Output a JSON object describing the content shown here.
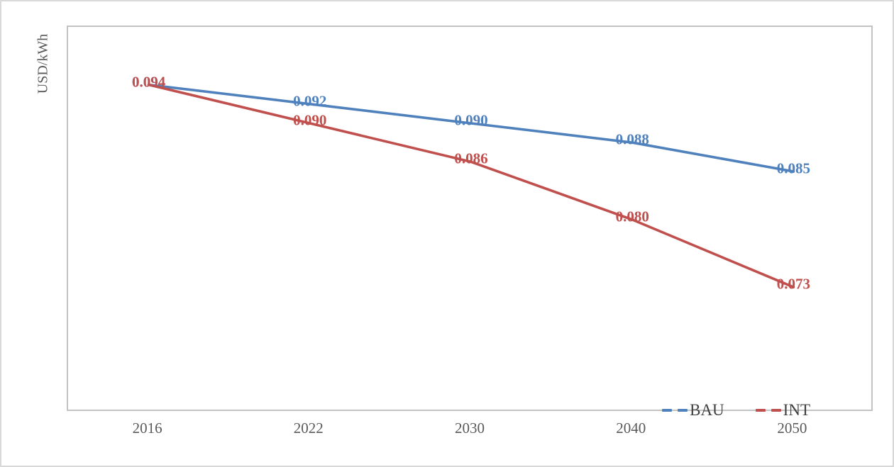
{
  "chart_data": {
    "type": "line",
    "title": "",
    "xlabel": "",
    "ylabel": "USD/kWh",
    "categories": [
      "2016",
      "2022",
      "2030",
      "2040",
      "2050"
    ],
    "series": [
      {
        "name": "BAU",
        "color": "#4F81BD",
        "values": [
          0.094,
          0.092,
          0.09,
          0.088,
          0.085
        ]
      },
      {
        "name": "INT",
        "color": "#C0504D",
        "values": [
          0.094,
          0.09,
          0.086,
          0.08,
          0.073
        ]
      }
    ],
    "ylim": [
      0.06,
      0.1
    ],
    "grid": false,
    "line_style": "solid",
    "data_labels": "shown, 3 decimals, colored per series, centered on points",
    "legend_position": "inside bottom-right",
    "legend_marker": "two dashes",
    "colors": {
      "axis_text": "#595959",
      "legend_text": "#404040",
      "plot_border": "#C3C3C3",
      "chart_border": "#D9D9D9",
      "background": "#FFFFFF"
    }
  }
}
